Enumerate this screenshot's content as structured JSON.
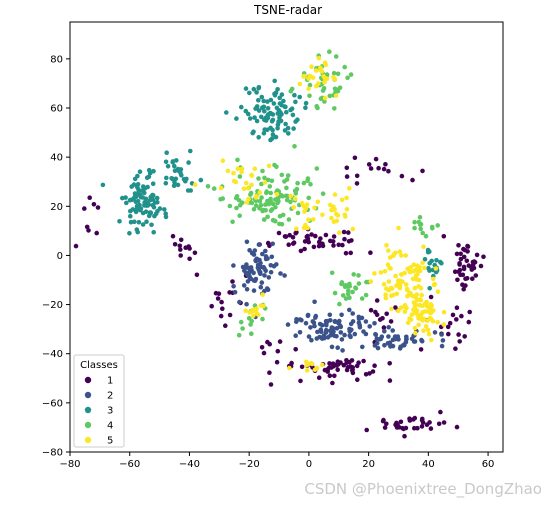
{
  "chart_data": {
    "type": "scatter",
    "title": "TSNE-radar",
    "xlabel": "",
    "ylabel": "",
    "xlim": [
      -80,
      65
    ],
    "ylim": [
      -80,
      95
    ],
    "xticks": [
      -80,
      -60,
      -40,
      -20,
      0,
      20,
      40,
      60
    ],
    "yticks": [
      -80,
      -60,
      -40,
      -20,
      0,
      20,
      40,
      60,
      80
    ],
    "grid": false,
    "legend": {
      "title": "Classes",
      "placement": "lower-left"
    },
    "series": [
      {
        "name": "1",
        "color": "#440154",
        "clusters": [
          {
            "cx": 53,
            "cy": -4,
            "sx": 3,
            "sy": 7,
            "n": 40
          },
          {
            "cx": 12,
            "cy": -46,
            "sx": 8,
            "sy": 3,
            "n": 45
          },
          {
            "cx": 32,
            "cy": -69,
            "sx": 9,
            "sy": 2,
            "n": 35
          },
          {
            "cx": 2,
            "cy": 6,
            "sx": 9,
            "sy": 3,
            "n": 45
          },
          {
            "cx": -72,
            "cy": 15,
            "sx": 3,
            "sy": 8,
            "n": 8
          },
          {
            "cx": -42,
            "cy": 2,
            "sx": 4,
            "sy": 6,
            "n": 12
          },
          {
            "cx": 20,
            "cy": 34,
            "sx": 10,
            "sy": 4,
            "n": 15
          },
          {
            "cx": -28,
            "cy": -18,
            "sx": 4,
            "sy": 6,
            "n": 14
          },
          {
            "cx": -8,
            "cy": -40,
            "sx": 5,
            "sy": 6,
            "n": 15
          },
          {
            "cx": 47,
            "cy": -28,
            "sx": 6,
            "sy": 6,
            "n": 18
          },
          {
            "cx": 25,
            "cy": -24,
            "sx": 3,
            "sy": 3,
            "n": 12
          }
        ]
      },
      {
        "name": "2",
        "color": "#3b528b",
        "clusters": [
          {
            "cx": -17,
            "cy": -6,
            "sx": 5,
            "sy": 7,
            "n": 70
          },
          {
            "cx": 8,
            "cy": -30,
            "sx": 9,
            "sy": 4,
            "n": 85
          },
          {
            "cx": 30,
            "cy": -34,
            "sx": 9,
            "sy": 3,
            "n": 45
          }
        ]
      },
      {
        "name": "3",
        "color": "#21918c",
        "clusters": [
          {
            "cx": -55,
            "cy": 22,
            "sx": 5,
            "sy": 8,
            "n": 95
          },
          {
            "cx": -44,
            "cy": 34,
            "sx": 4,
            "sy": 5,
            "n": 30
          },
          {
            "cx": -12,
            "cy": 58,
            "sx": 6,
            "sy": 7,
            "n": 95
          },
          {
            "cx": 42,
            "cy": -4,
            "sx": 2,
            "sy": 5,
            "n": 20
          }
        ]
      },
      {
        "name": "4",
        "color": "#5ec962",
        "clusters": [
          {
            "cx": 5,
            "cy": 70,
            "sx": 5,
            "sy": 7,
            "n": 45
          },
          {
            "cx": -13,
            "cy": 24,
            "sx": 10,
            "sy": 7,
            "n": 110
          },
          {
            "cx": 14,
            "cy": -14,
            "sx": 4,
            "sy": 4,
            "n": 25
          },
          {
            "cx": 38,
            "cy": 12,
            "sx": 3,
            "sy": 2,
            "n": 12
          },
          {
            "cx": -20,
            "cy": -26,
            "sx": 3,
            "sy": 5,
            "n": 12
          }
        ]
      },
      {
        "name": "5",
        "color": "#fde725",
        "clusters": [
          {
            "cx": 3,
            "cy": 72,
            "sx": 5,
            "sy": 7,
            "n": 25
          },
          {
            "cx": 32,
            "cy": -10,
            "sx": 6,
            "sy": 8,
            "n": 85
          },
          {
            "cx": 38,
            "cy": -25,
            "sx": 4,
            "sy": 6,
            "n": 55
          },
          {
            "cx": 5,
            "cy": 18,
            "sx": 8,
            "sy": 6,
            "n": 35
          },
          {
            "cx": -22,
            "cy": 30,
            "sx": 8,
            "sy": 5,
            "n": 25
          },
          {
            "cx": 0,
            "cy": -44,
            "sx": 3,
            "sy": 2,
            "n": 10
          },
          {
            "cx": -18,
            "cy": -20,
            "sx": 3,
            "sy": 4,
            "n": 12
          }
        ]
      }
    ]
  },
  "watermark": "CSDN @Phoenixtree_DongZhao"
}
